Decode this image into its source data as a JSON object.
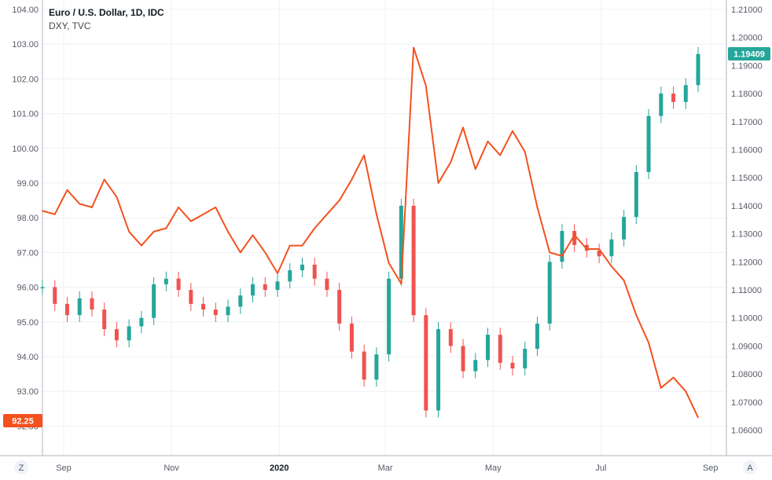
{
  "legend": {
    "title": "Euro / U.S. Dollar, 1D, IDC",
    "subtitle": "DXY, TVC"
  },
  "buttons": {
    "left": "Z",
    "right": "A"
  },
  "colors": {
    "up": "#26a69a",
    "down": "#ef5350",
    "dxy": "#f4511e",
    "grid": "#eef0f3",
    "axis": "#b2b5be"
  },
  "badges": {
    "left": "92.25",
    "right": "1.19409",
    "left_color": "#f4511e",
    "right_color": "#26a69a"
  },
  "chart_data": {
    "type": "line",
    "x": [
      "2019-08-20",
      "2019-08-27",
      "2019-09-03",
      "2019-09-10",
      "2019-09-17",
      "2019-09-24",
      "2019-10-01",
      "2019-10-08",
      "2019-10-15",
      "2019-10-22",
      "2019-10-29",
      "2019-11-05",
      "2019-11-12",
      "2019-11-19",
      "2019-11-26",
      "2019-12-03",
      "2019-12-10",
      "2019-12-17",
      "2019-12-24",
      "2019-12-31",
      "2020-01-07",
      "2020-01-14",
      "2020-01-21",
      "2020-01-28",
      "2020-02-04",
      "2020-02-11",
      "2020-02-18",
      "2020-02-25",
      "2020-03-03",
      "2020-03-10",
      "2020-03-17",
      "2020-03-24",
      "2020-03-31",
      "2020-04-07",
      "2020-04-14",
      "2020-04-21",
      "2020-04-28",
      "2020-05-05",
      "2020-05-12",
      "2020-05-19",
      "2020-05-26",
      "2020-06-02",
      "2020-06-09",
      "2020-06-16",
      "2020-06-23",
      "2020-06-30",
      "2020-07-07",
      "2020-07-14",
      "2020-07-21",
      "2020-07-28",
      "2020-08-04",
      "2020-08-11",
      "2020-08-18",
      "2020-08-25"
    ],
    "series": [
      {
        "name": "DXY, TVC",
        "axis": "left",
        "values": [
          98.2,
          98.1,
          98.8,
          98.4,
          98.3,
          99.1,
          98.6,
          97.6,
          97.2,
          97.6,
          97.7,
          98.3,
          97.9,
          98.1,
          98.3,
          97.6,
          97.0,
          97.5,
          97.0,
          96.4,
          97.2,
          97.2,
          97.7,
          98.1,
          98.5,
          99.1,
          99.8,
          98.1,
          96.7,
          96.1,
          102.9,
          101.8,
          99.0,
          99.6,
          100.6,
          99.4,
          100.2,
          99.8,
          100.5,
          99.9,
          98.3,
          97.0,
          96.9,
          97.5,
          97.1,
          97.1,
          96.6,
          96.2,
          95.2,
          94.4,
          93.1,
          93.4,
          93.0,
          92.25
        ]
      },
      {
        "name": "Euro / U.S. Dollar",
        "axis": "right",
        "values": [
          1.111,
          1.105,
          1.101,
          1.107,
          1.103,
          1.096,
          1.092,
          1.097,
          1.1,
          1.112,
          1.114,
          1.11,
          1.105,
          1.103,
          1.101,
          1.104,
          1.108,
          1.112,
          1.11,
          1.113,
          1.117,
          1.119,
          1.114,
          1.11,
          1.098,
          1.088,
          1.078,
          1.087,
          1.114,
          1.14,
          1.101,
          1.067,
          1.096,
          1.09,
          1.081,
          1.085,
          1.094,
          1.084,
          1.082,
          1.089,
          1.098,
          1.12,
          1.131,
          1.126,
          1.124,
          1.122,
          1.128,
          1.136,
          1.152,
          1.172,
          1.18,
          1.177,
          1.183,
          1.19409
        ]
      }
    ],
    "x_ticks": [
      {
        "label": "Sep",
        "date": "2019-09-01",
        "bold": false
      },
      {
        "label": "Nov",
        "date": "2019-11-01",
        "bold": false
      },
      {
        "label": "2020",
        "date": "2020-01-01",
        "bold": true
      },
      {
        "label": "Mar",
        "date": "2020-03-01",
        "bold": false
      },
      {
        "label": "May",
        "date": "2020-05-01",
        "bold": false
      },
      {
        "label": "Jul",
        "date": "2020-07-01",
        "bold": false
      },
      {
        "label": "Sep",
        "date": "2020-09-01",
        "bold": false
      }
    ],
    "y_left": {
      "ticks": [
        "104.00",
        "103.00",
        "102.00",
        "101.00",
        "100.00",
        "99.00",
        "98.00",
        "97.00",
        "96.00",
        "95.00",
        "94.00",
        "93.00",
        "92.00"
      ],
      "range": [
        92,
        104
      ]
    },
    "y_right": {
      "ticks": [
        "1.21000",
        "1.20000",
        "1.19000",
        "1.18000",
        "1.17000",
        "1.16000",
        "1.15000",
        "1.14000",
        "1.13000",
        "1.12000",
        "1.11000",
        "1.10000",
        "1.09000",
        "1.08000",
        "1.07000",
        "1.06000"
      ],
      "range": [
        1.06,
        1.21
      ]
    },
    "x_range": [
      "2019-08-20",
      "2020-09-10"
    ],
    "grid": true
  }
}
